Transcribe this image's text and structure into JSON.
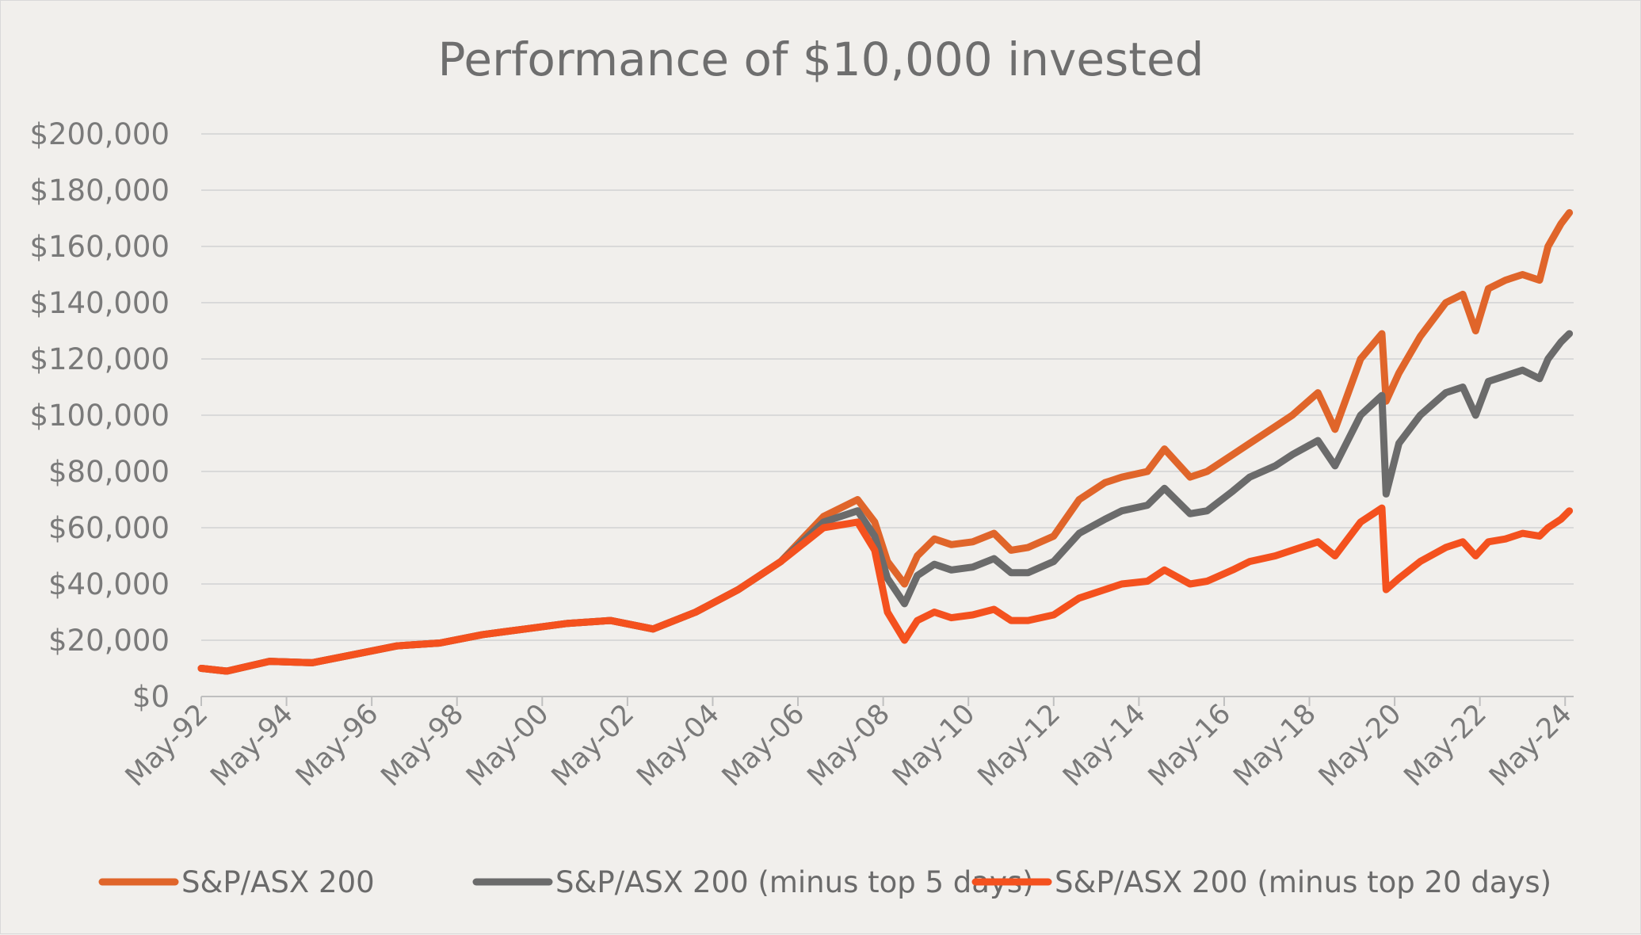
{
  "chart_data": {
    "type": "line",
    "title": "Performance of $10,000 invested",
    "xlabel": "",
    "ylabel": "",
    "ylim": [
      0,
      200000
    ],
    "y_ticks": [
      "$0",
      "$20,000",
      "$40,000",
      "$60,000",
      "$80,000",
      "$100,000",
      "$120,000",
      "$140,000",
      "$160,000",
      "$180,000",
      "$200,000"
    ],
    "x_ticks": [
      "May-92",
      "May-94",
      "May-96",
      "May-98",
      "May-00",
      "May-02",
      "May-04",
      "May-06",
      "May-08",
      "May-10",
      "May-12",
      "May-14",
      "May-16",
      "May-18",
      "May-20",
      "May-22",
      "May-24"
    ],
    "xlim": [
      1992.4,
      2024.6
    ],
    "grid": true,
    "legend_position": "bottom",
    "series": [
      {
        "name": "S&P/ASX 200",
        "color": "#e0652a",
        "x": [
          1992.4,
          1993.0,
          1994.0,
          1995.0,
          1996.0,
          1997.0,
          1998.0,
          1999.0,
          2000.0,
          2001.0,
          2002.0,
          2003.0,
          2004.0,
          2005.0,
          2006.0,
          2007.0,
          2007.8,
          2008.2,
          2008.5,
          2008.9,
          2009.2,
          2009.6,
          2010.0,
          2010.5,
          2011.0,
          2011.4,
          2011.8,
          2012.4,
          2013.0,
          2013.6,
          2014.0,
          2014.6,
          2015.0,
          2015.6,
          2016.0,
          2016.6,
          2017.0,
          2017.6,
          2018.0,
          2018.6,
          2019.0,
          2019.6,
          2020.1,
          2020.2,
          2020.5,
          2021.0,
          2021.6,
          2022.0,
          2022.3,
          2022.6,
          2023.0,
          2023.4,
          2023.8,
          2024.0,
          2024.3,
          2024.5
        ],
        "values": [
          10000,
          9000,
          12500,
          12000,
          15000,
          18000,
          19000,
          22000,
          24000,
          26000,
          27000,
          24000,
          30000,
          38000,
          48000,
          64000,
          70000,
          62000,
          48000,
          40000,
          50000,
          56000,
          54000,
          55000,
          58000,
          52000,
          53000,
          57000,
          70000,
          76000,
          78000,
          80000,
          88000,
          78000,
          80000,
          86000,
          90000,
          96000,
          100000,
          108000,
          95000,
          120000,
          129000,
          105000,
          115000,
          128000,
          140000,
          143000,
          130000,
          145000,
          148000,
          150000,
          148000,
          160000,
          168000,
          172000
        ]
      },
      {
        "name": "S&P/ASX 200 (minus top 5 days)",
        "color": "#6b6b6b",
        "x": [
          1992.4,
          1993.0,
          1994.0,
          1995.0,
          1996.0,
          1997.0,
          1998.0,
          1999.0,
          2000.0,
          2001.0,
          2002.0,
          2003.0,
          2004.0,
          2005.0,
          2006.0,
          2007.0,
          2007.8,
          2008.2,
          2008.5,
          2008.9,
          2009.2,
          2009.6,
          2010.0,
          2010.5,
          2011.0,
          2011.4,
          2011.8,
          2012.4,
          2013.0,
          2013.6,
          2014.0,
          2014.6,
          2015.0,
          2015.6,
          2016.0,
          2016.6,
          2017.0,
          2017.6,
          2018.0,
          2018.6,
          2019.0,
          2019.6,
          2020.1,
          2020.2,
          2020.5,
          2021.0,
          2021.6,
          2022.0,
          2022.3,
          2022.6,
          2023.0,
          2023.4,
          2023.8,
          2024.0,
          2024.3,
          2024.5
        ],
        "values": [
          10000,
          9000,
          12500,
          12000,
          15000,
          18000,
          19000,
          22000,
          24000,
          26000,
          27000,
          24000,
          30000,
          38000,
          48000,
          62000,
          66000,
          57000,
          42000,
          33000,
          43000,
          47000,
          45000,
          46000,
          49000,
          44000,
          44000,
          48000,
          58000,
          63000,
          66000,
          68000,
          74000,
          65000,
          66000,
          73000,
          78000,
          82000,
          86000,
          91000,
          82000,
          100000,
          107000,
          72000,
          90000,
          100000,
          108000,
          110000,
          100000,
          112000,
          114000,
          116000,
          113000,
          120000,
          126000,
          129000
        ]
      },
      {
        "name": "S&P/ASX 200 (minus top 20 days)",
        "color": "#f4511e",
        "x": [
          1992.4,
          1993.0,
          1994.0,
          1995.0,
          1996.0,
          1997.0,
          1998.0,
          1999.0,
          2000.0,
          2001.0,
          2002.0,
          2003.0,
          2004.0,
          2005.0,
          2006.0,
          2007.0,
          2007.8,
          2008.2,
          2008.5,
          2008.9,
          2009.2,
          2009.6,
          2010.0,
          2010.5,
          2011.0,
          2011.4,
          2011.8,
          2012.4,
          2013.0,
          2013.6,
          2014.0,
          2014.6,
          2015.0,
          2015.6,
          2016.0,
          2016.6,
          2017.0,
          2017.6,
          2018.0,
          2018.6,
          2019.0,
          2019.6,
          2020.1,
          2020.2,
          2020.5,
          2021.0,
          2021.6,
          2022.0,
          2022.3,
          2022.6,
          2023.0,
          2023.4,
          2023.8,
          2024.0,
          2024.3,
          2024.5
        ],
        "values": [
          10000,
          9000,
          12500,
          12000,
          15000,
          18000,
          19000,
          22000,
          24000,
          26000,
          27000,
          24000,
          30000,
          38000,
          48000,
          60000,
          62000,
          52000,
          30000,
          20000,
          27000,
          30000,
          28000,
          29000,
          31000,
          27000,
          27000,
          29000,
          35000,
          38000,
          40000,
          41000,
          45000,
          40000,
          41000,
          45000,
          48000,
          50000,
          52000,
          55000,
          50000,
          62000,
          67000,
          38000,
          42000,
          48000,
          53000,
          55000,
          50000,
          55000,
          56000,
          58000,
          57000,
          60000,
          63000,
          66000
        ]
      }
    ]
  }
}
